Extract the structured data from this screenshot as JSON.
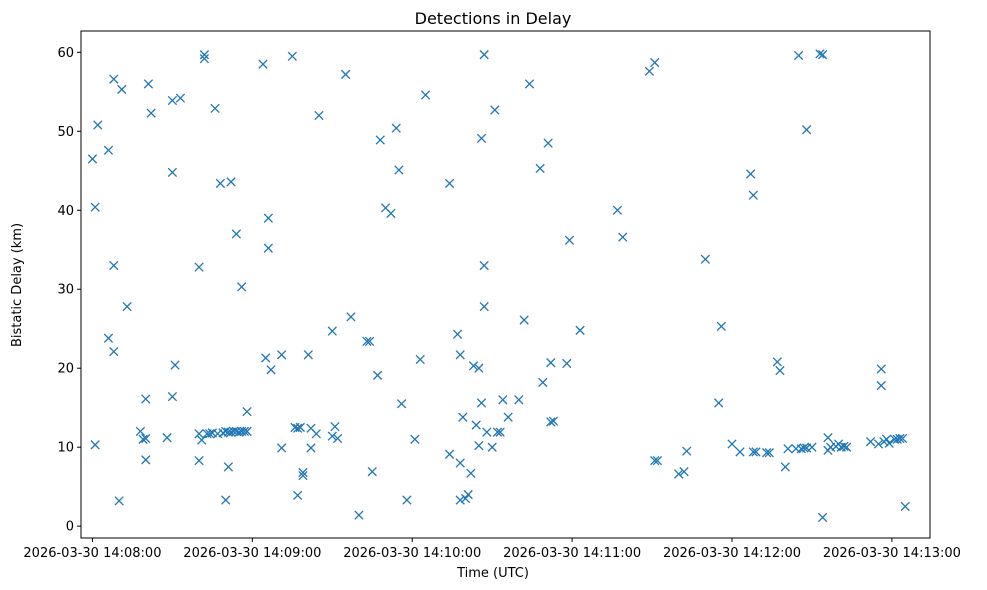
{
  "chart_data": {
    "type": "scatter",
    "title": "Detections in Delay",
    "xlabel": "Time (UTC)",
    "ylabel": "Bistatic Delay (km)",
    "x_unit": "seconds after 2026-03-30 14:08:00",
    "xlim": [
      -4.3,
      314.3
    ],
    "ylim": [
      -1.5,
      62.7
    ],
    "x_ticks": [
      {
        "value": 0,
        "label": "2026-03-30 14:08:00"
      },
      {
        "value": 60,
        "label": "2026-03-30 14:09:00"
      },
      {
        "value": 120,
        "label": "2026-03-30 14:10:00"
      },
      {
        "value": 180,
        "label": "2026-03-30 14:11:00"
      },
      {
        "value": 240,
        "label": "2026-03-30 14:12:00"
      },
      {
        "value": 300,
        "label": "2026-03-30 14:13:00"
      }
    ],
    "y_ticks": [
      {
        "value": 0,
        "label": "0"
      },
      {
        "value": 10,
        "label": "10"
      },
      {
        "value": 20,
        "label": "20"
      },
      {
        "value": 30,
        "label": "30"
      },
      {
        "value": 40,
        "label": "40"
      },
      {
        "value": 50,
        "label": "50"
      },
      {
        "value": 60,
        "label": "60"
      }
    ],
    "marker": "x",
    "color": "#1f77b4",
    "series": [
      {
        "name": "Detections",
        "points": [
          [
            0,
            46.5
          ],
          [
            1,
            40.4
          ],
          [
            1,
            10.3
          ],
          [
            2,
            50.8
          ],
          [
            6,
            47.6
          ],
          [
            6,
            23.8
          ],
          [
            8,
            56.6
          ],
          [
            8,
            33
          ],
          [
            8,
            22.1
          ],
          [
            10,
            3.2
          ],
          [
            11,
            55.3
          ],
          [
            13,
            27.8
          ],
          [
            18,
            12
          ],
          [
            19,
            11
          ],
          [
            20,
            11.1
          ],
          [
            20,
            8.4
          ],
          [
            20,
            16.1
          ],
          [
            21,
            56
          ],
          [
            22,
            52.3
          ],
          [
            28,
            11.2
          ],
          [
            30,
            53.9
          ],
          [
            30,
            44.8
          ],
          [
            30,
            16.4
          ],
          [
            31,
            20.4
          ],
          [
            33,
            54.2
          ],
          [
            40,
            32.8
          ],
          [
            40,
            8.3
          ],
          [
            40,
            11.7
          ],
          [
            41,
            10.9
          ],
          [
            42,
            59.7
          ],
          [
            42,
            59.2
          ],
          [
            43,
            11.7
          ],
          [
            44,
            11.7
          ],
          [
            45,
            11.8
          ],
          [
            46,
            52.9
          ],
          [
            47,
            11.7
          ],
          [
            48,
            43.4
          ],
          [
            49,
            11.8
          ],
          [
            50,
            3.3
          ],
          [
            50,
            12
          ],
          [
            51,
            7.5
          ],
          [
            51,
            11.9
          ],
          [
            52,
            43.6
          ],
          [
            52,
            11.9
          ],
          [
            53,
            12
          ],
          [
            54,
            37
          ],
          [
            54,
            12
          ],
          [
            55,
            11.9
          ],
          [
            56,
            12
          ],
          [
            56,
            30.3
          ],
          [
            57,
            12
          ],
          [
            58,
            12
          ],
          [
            58,
            14.5
          ],
          [
            58,
            12
          ],
          [
            64,
            58.5
          ],
          [
            65,
            21.3
          ],
          [
            66,
            39
          ],
          [
            66,
            35.2
          ],
          [
            67,
            19.8
          ],
          [
            71,
            21.7
          ],
          [
            71,
            9.9
          ],
          [
            75,
            59.5
          ],
          [
            76,
            12.5
          ],
          [
            77,
            12.4
          ],
          [
            77,
            3.9
          ],
          [
            78,
            12.5
          ],
          [
            79,
            6.8
          ],
          [
            79,
            6.4
          ],
          [
            81,
            21.7
          ],
          [
            82,
            9.9
          ],
          [
            82,
            12.4
          ],
          [
            84,
            11.7
          ],
          [
            85,
            52
          ],
          [
            90,
            24.7
          ],
          [
            90,
            11.4
          ],
          [
            91,
            12.6
          ],
          [
            92,
            11.1
          ],
          [
            95,
            57.2
          ],
          [
            97,
            26.5
          ],
          [
            100,
            1.4
          ],
          [
            103,
            23.4
          ],
          [
            104,
            23.4
          ],
          [
            105,
            6.9
          ],
          [
            107,
            19.1
          ],
          [
            108,
            48.9
          ],
          [
            110,
            40.3
          ],
          [
            112,
            39.6
          ],
          [
            114,
            50.4
          ],
          [
            115,
            45.1
          ],
          [
            116,
            15.5
          ],
          [
            118,
            3.3
          ],
          [
            121,
            11
          ],
          [
            123,
            21.1
          ],
          [
            125,
            54.6
          ],
          [
            134,
            43.4
          ],
          [
            134,
            9.1
          ],
          [
            137,
            24.3
          ],
          [
            138,
            21.7
          ],
          [
            138,
            3.3
          ],
          [
            138,
            8
          ],
          [
            139,
            13.8
          ],
          [
            140,
            3.5
          ],
          [
            141,
            4
          ],
          [
            142,
            6.7
          ],
          [
            143,
            20.3
          ],
          [
            144,
            12.8
          ],
          [
            145,
            20
          ],
          [
            145,
            10.2
          ],
          [
            146,
            15.6
          ],
          [
            146,
            49.1
          ],
          [
            147,
            59.7
          ],
          [
            147,
            33
          ],
          [
            147,
            27.8
          ],
          [
            148,
            11.9
          ],
          [
            150,
            10
          ],
          [
            151,
            52.7
          ],
          [
            152,
            11.9
          ],
          [
            153,
            11.9
          ],
          [
            154,
            16
          ],
          [
            156,
            13.8
          ],
          [
            160,
            16
          ],
          [
            162,
            26.1
          ],
          [
            164,
            56
          ],
          [
            168,
            45.3
          ],
          [
            169,
            18.2
          ],
          [
            171,
            48.5
          ],
          [
            172,
            13.2
          ],
          [
            172,
            20.7
          ],
          [
            173,
            13.3
          ],
          [
            178,
            20.6
          ],
          [
            179,
            36.2
          ],
          [
            183,
            24.8
          ],
          [
            197,
            40
          ],
          [
            199,
            36.6
          ],
          [
            209,
            57.6
          ],
          [
            211,
            58.7
          ],
          [
            211,
            8.3
          ],
          [
            212,
            8.3
          ],
          [
            220,
            6.6
          ],
          [
            222,
            6.9
          ],
          [
            223,
            9.5
          ],
          [
            230,
            33.8
          ],
          [
            235,
            15.6
          ],
          [
            236,
            25.3
          ],
          [
            240,
            10.4
          ],
          [
            243,
            9.4
          ],
          [
            247,
            44.6
          ],
          [
            248,
            41.9
          ],
          [
            248,
            9.4
          ],
          [
            249,
            9.4
          ],
          [
            253,
            9.3
          ],
          [
            254,
            9.3
          ],
          [
            257,
            20.8
          ],
          [
            258,
            19.7
          ],
          [
            260,
            7.5
          ],
          [
            261,
            9.8
          ],
          [
            264,
            9.8
          ],
          [
            265,
            59.6
          ],
          [
            266,
            9.8
          ],
          [
            267,
            9.9
          ],
          [
            268,
            9.9
          ],
          [
            268,
            50.2
          ],
          [
            270,
            10
          ],
          [
            273,
            59.8
          ],
          [
            274,
            59.7
          ],
          [
            274,
            1.1
          ],
          [
            276,
            11.2
          ],
          [
            276,
            9.6
          ],
          [
            277,
            10
          ],
          [
            279,
            10.1
          ],
          [
            280,
            10.4
          ],
          [
            281,
            10
          ],
          [
            282,
            10.1
          ],
          [
            283,
            10
          ],
          [
            292,
            10.7
          ],
          [
            295,
            10.4
          ],
          [
            296,
            19.9
          ],
          [
            296,
            17.8
          ],
          [
            297,
            10.7
          ],
          [
            298,
            11
          ],
          [
            299,
            10.5
          ],
          [
            301,
            11
          ],
          [
            302,
            11
          ],
          [
            303,
            11.1
          ],
          [
            304,
            11.1
          ],
          [
            305,
            2.5
          ]
        ]
      }
    ]
  }
}
